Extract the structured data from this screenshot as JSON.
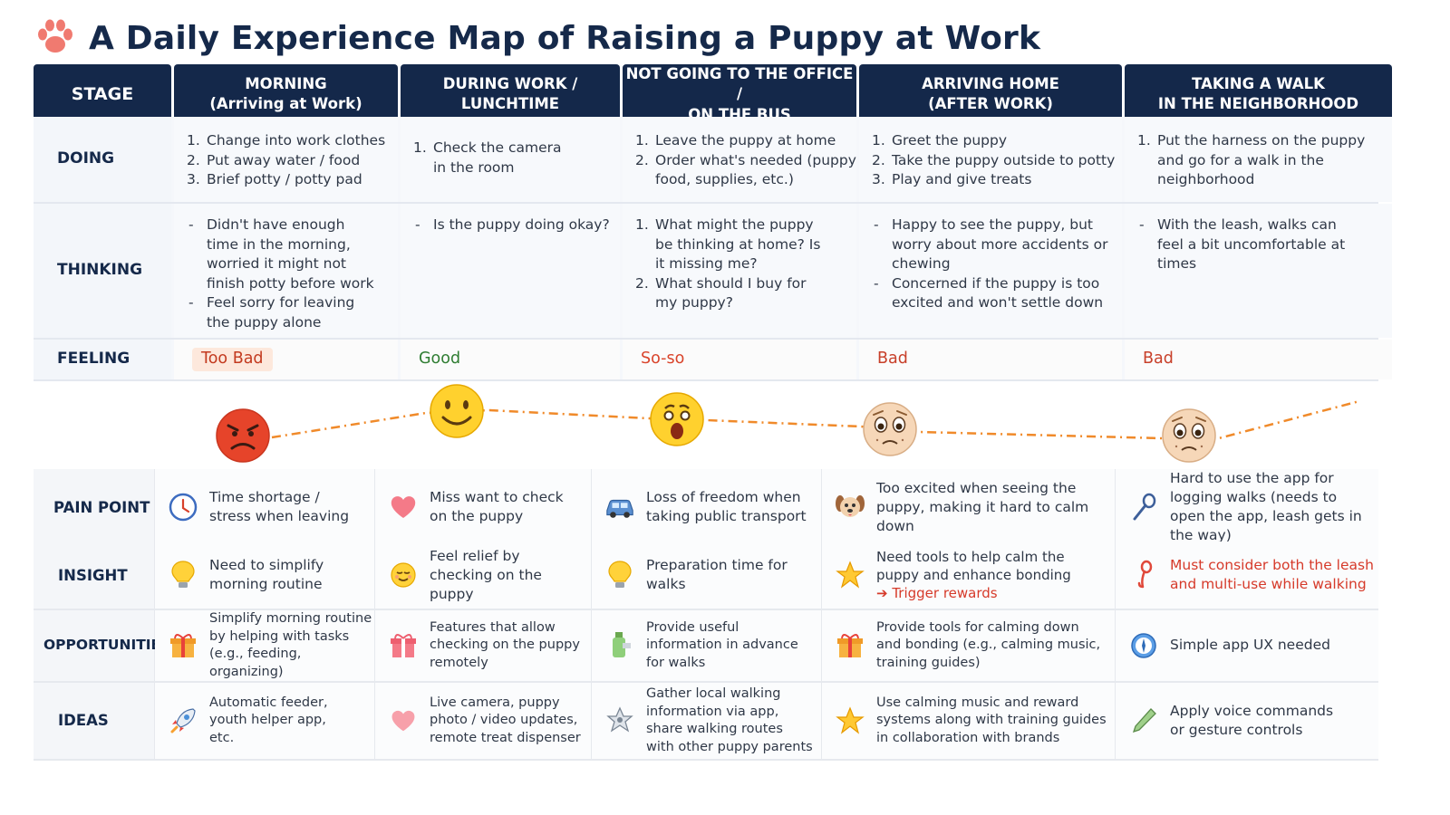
{
  "title": "A Daily Experience Map of Raising a Puppy at Work",
  "stage_label": "STAGE",
  "stages": [
    {
      "l1": "MORNING",
      "l2": "(Arriving at Work)"
    },
    {
      "l1": "DURING WORK /",
      "l2": "LUNCHTIME"
    },
    {
      "l1": "NOT GOING TO THE OFFICE /",
      "l2": "ON THE BUS"
    },
    {
      "l1": "ARRIVING HOME",
      "l2": "(AFTER WORK)"
    },
    {
      "l1": "TAKING A WALK",
      "l2": "IN THE NEIGHBORHOOD"
    }
  ],
  "rows": {
    "doing": "DOING",
    "thinking": "THINKING",
    "feeling": "FEELING",
    "pain": "PAIN POINT",
    "insight": "INSIGHT",
    "opportunities": "OPPORTUNITIES",
    "ideas": "IDEAS"
  },
  "doing": [
    [
      "Change into work clothes",
      "Put away water / food",
      "Brief potty / potty pad"
    ],
    [
      "Check the camera in the room"
    ],
    [
      "Leave the puppy at home",
      "Order what's needed (puppy food, supplies, etc.)"
    ],
    [
      "Greet the puppy",
      "Take the puppy outside to potty",
      "Play and give treats"
    ],
    [
      "Put the harness on the puppy and go for a walk in the neighborhood"
    ]
  ],
  "thinking": {
    "s1": [
      "Didn't have enough time in the morning, worried it might not finish potty before work",
      "Feel sorry for leaving the puppy alone"
    ],
    "s2": [
      "Is the puppy doing okay?"
    ],
    "s3": [
      "What might the puppy be thinking at home? Is it missing me?",
      "What should I buy for my puppy?"
    ],
    "s4": [
      "Happy to see the puppy, but worry about more accidents or chewing",
      "Concerned if the puppy is too excited and won't settle down"
    ],
    "s5": [
      "With the leash, walks can feel a bit uncomfortable at times"
    ]
  },
  "feelings": [
    "Too Bad",
    "Good",
    "So-so",
    "Bad",
    "Bad"
  ],
  "emotion_curve": {
    "faces": [
      "angry-face-icon",
      "smiling-face-icon",
      "surprised-face-icon",
      "worried-puppy-face-icon",
      "worried-puppy-face-icon"
    ],
    "levels": [
      1,
      5,
      4,
      3,
      2.5
    ],
    "line_color": "#f08a2a"
  },
  "pain": [
    {
      "icon": "clock-icon",
      "text": "Time shortage / stress when leaving"
    },
    {
      "icon": "heart-icon",
      "text": "Miss want to check on the puppy"
    },
    {
      "icon": "car-icon",
      "text": "Loss of freedom when taking public transport"
    },
    {
      "icon": "puppy-icon",
      "text": "Too excited when seeing the puppy, making it hard to calm down"
    },
    {
      "icon": "leash-icon",
      "text": "Hard to use the app for logging walks (needs to open the app, leash gets in the way)"
    }
  ],
  "insight": [
    {
      "icon": "lightbulb-icon",
      "text": "Need to simplify morning routine"
    },
    {
      "icon": "relieved-face-icon",
      "text": "Feel relief by checking on the puppy"
    },
    {
      "icon": "lightbulb-icon",
      "text": "Preparation time for walks"
    },
    {
      "icon": "star-icon",
      "text": "Need tools to help calm the puppy and enhance bonding",
      "extra": "➔ Trigger rewards"
    },
    {
      "icon": "leash-red-icon",
      "text": "Must consider both the leash and multi-use while walking"
    }
  ],
  "opportunities": [
    {
      "icon": "gift-icon",
      "text": "Simplify morning routine by helping with tasks (e.g., feeding, organizing)"
    },
    {
      "icon": "gift-icon",
      "text": "Features that allow checking on the puppy remotely"
    },
    {
      "icon": "bottle-icon",
      "text": "Provide useful information in advance for walks"
    },
    {
      "icon": "gift-icon",
      "text": "Provide tools for calming down and bonding (e.g., calming music, training guides)"
    },
    {
      "icon": "compass-icon",
      "text": "Simple app UX needed"
    }
  ],
  "ideas": [
    {
      "icon": "rocket-icon",
      "text": "Automatic feeder, youth helper app, etc."
    },
    {
      "icon": "heart-icon",
      "text": "Live camera, puppy photo / video updates, remote treat dispenser"
    },
    {
      "icon": "badge-icon",
      "text": "Gather local walking information via app, share walking routes with other puppy parents"
    },
    {
      "icon": "star-icon",
      "text": "Use calming music and reward systems along with training guides in collaboration with brands"
    },
    {
      "icon": "pencil-icon",
      "text": "Apply voice commands or gesture controls"
    }
  ]
}
